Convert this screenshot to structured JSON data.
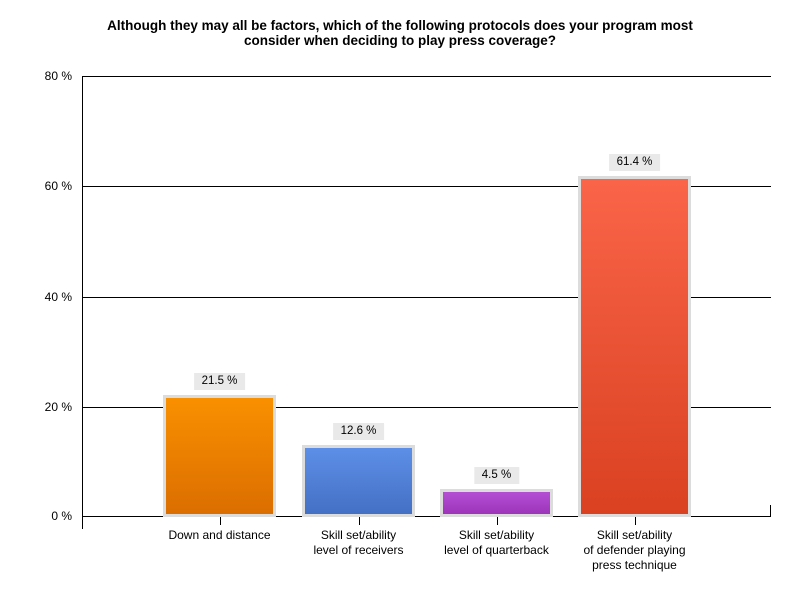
{
  "page": {
    "background": "#ffffff",
    "text_color": "#000000"
  },
  "chart_data": {
    "type": "bar",
    "title": "Although they may all be factors, which of the following protocols does your program most consider when deciding to play press coverage?",
    "title_lines": [
      "Although they may all be factors, which of the following protocols does your program most",
      "consider when deciding to play press coverage?"
    ],
    "categories": [
      "Down and distance",
      "Skill set/ability level of receivers",
      "Skill set/ability level of quarterback",
      "Skill set/ability of defender playing press technique"
    ],
    "category_lines": [
      [
        "Down and distance"
      ],
      [
        "Skill set/ability",
        "level of receivers"
      ],
      [
        "Skill set/ability",
        "level of quarterback"
      ],
      [
        "Skill set/ability",
        "of defender playing",
        "press technique"
      ]
    ],
    "values": [
      21.5,
      12.6,
      4.5,
      61.4
    ],
    "value_labels": [
      "21.5 %",
      "12.6 %",
      "4.5 %",
      "61.4 %"
    ],
    "bar_colors": [
      {
        "top": "#f99000",
        "bottom": "#db6e00"
      },
      {
        "top": "#5d8fe8",
        "bottom": "#4470c4"
      },
      {
        "top": "#b44fd4",
        "bottom": "#9d34ba"
      },
      {
        "top": "#fa6448",
        "bottom": "#d94121"
      }
    ],
    "xlabel": "",
    "ylabel": "",
    "ylim": [
      0,
      80
    ],
    "y_ticks": [
      0,
      20,
      40,
      60,
      80
    ],
    "y_tick_labels": [
      "0 %",
      "20 %",
      "40 %",
      "60 %",
      "80 %"
    ],
    "grid": "horizontal-black",
    "legend": "none",
    "value_label_bg": "#e9e9e9",
    "bar_border_color": "#dcdcdc",
    "axis_color": "#000000"
  }
}
